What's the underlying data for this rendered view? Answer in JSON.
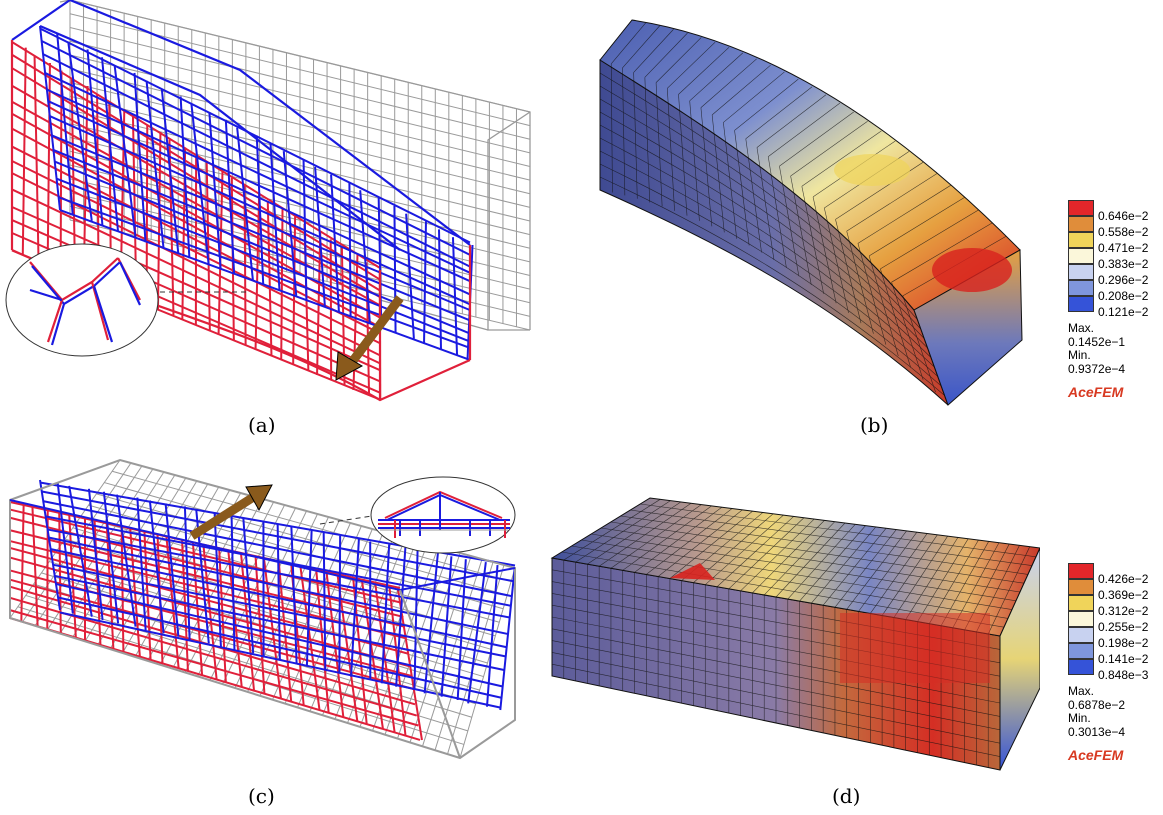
{
  "figure": {
    "captions": {
      "a": "(a)",
      "b": "(b)",
      "c": "(c)",
      "d": "(d)"
    }
  },
  "legend_b": {
    "colors": [
      "#e3262a",
      "#e08d3a",
      "#f0d45a",
      "#fbf7da",
      "#c8d2f0",
      "#7f96dc",
      "#3553d8"
    ],
    "ticks": [
      "0.646e−2",
      "0.558e−2",
      "0.471e−2",
      "0.383e−2",
      "0.296e−2",
      "0.208e−2",
      "0.121e−2"
    ],
    "max_label": "Max.",
    "max_value": "0.1452e−1",
    "min_label": "Min.",
    "min_value": "0.9372e−4",
    "brand": "AceFEM"
  },
  "legend_d": {
    "colors": [
      "#e3262a",
      "#e08d3a",
      "#f0d45a",
      "#fbf7da",
      "#c8d2f0",
      "#7f96dc",
      "#3553d8"
    ],
    "ticks": [
      "0.426e−2",
      "0.369e−2",
      "0.312e−2",
      "0.255e−2",
      "0.198e−2",
      "0.141e−2",
      "0.848e−3"
    ],
    "max_label": "Max.",
    "max_value": "0.6878e−2",
    "min_label": "Min.",
    "min_value": "0.3013e−4",
    "brand": "AceFEM"
  },
  "colors": {
    "red_bars": "#e0203a",
    "blue_bars": "#1a1ae0",
    "grey_mesh": "#9a9a9a",
    "arrow": "#8a5a1c"
  }
}
